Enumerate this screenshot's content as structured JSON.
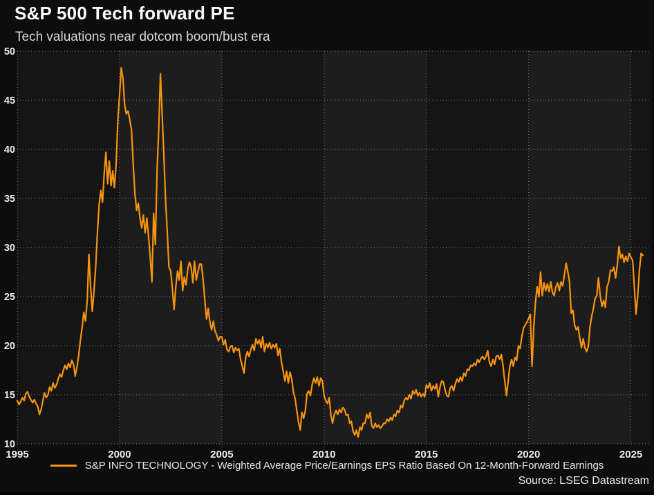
{
  "footer": {
    "source": "Source: LSEG Datastream"
  },
  "colors": {
    "background": "#0d0d0d",
    "line": "#F6940E",
    "band_dark": "#151515",
    "band_light": "#1d1d1d",
    "grid_dots": "#8f8f8f",
    "tick_text": "#ececec"
  },
  "chart_data": {
    "type": "line",
    "title": "S&P 500 Tech forward PE",
    "subtitle": "Tech valuations near dotcom boom/bust era",
    "xlabel": "",
    "ylabel": "",
    "grid": "dotted",
    "legend_position": "bottom",
    "plot_bands": "alternating 5-year vertical bands",
    "x_ticks": [
      1995,
      2000,
      2005,
      2010,
      2015,
      2020,
      2025
    ],
    "y_ticks": [
      10,
      15,
      20,
      25,
      30,
      35,
      40,
      45,
      50
    ],
    "xlim": [
      1995,
      2025.96
    ],
    "ylim": [
      10,
      50
    ],
    "x_start": 1995,
    "x_step": 0.083333,
    "series": [
      {
        "name": "S&P INFO TECHNOLOGY - Weighted Average Price/Earnings EPS Ratio Based On 12-Month-Forward Earnings",
        "color": "#F6940E",
        "values": [
          14.4,
          14.0,
          14.3,
          14.7,
          14.4,
          15.1,
          15.3,
          14.8,
          14.5,
          14.2,
          14.5,
          14.1,
          13.8,
          13.0,
          13.5,
          14.4,
          15.2,
          14.7,
          15.0,
          15.8,
          15.4,
          16.2,
          15.7,
          16.0,
          16.6,
          17.1,
          16.8,
          17.5,
          18.0,
          17.6,
          18.2,
          17.8,
          18.5,
          18.1,
          16.9,
          17.8,
          19.0,
          20.5,
          21.8,
          23.4,
          22.5,
          24.5,
          29.3,
          26.0,
          23.5,
          25.5,
          28.0,
          31.5,
          34.3,
          35.8,
          34.6,
          37.5,
          39.7,
          36.5,
          38.8,
          36.3,
          37.8,
          36.1,
          38.5,
          43.0,
          45.5,
          48.3,
          47.2,
          44.5,
          43.6,
          43.9,
          43.0,
          42.0,
          38.5,
          35.5,
          33.8,
          34.5,
          33.0,
          32.0,
          33.3,
          31.5,
          33.0,
          31.2,
          29.0,
          26.5,
          33.5,
          30.3,
          37.8,
          42.0,
          47.7,
          43.5,
          39.5,
          34.8,
          31.5,
          28.0,
          27.6,
          25.8,
          23.7,
          26.0,
          27.6,
          26.7,
          28.6,
          25.6,
          27.0,
          26.2,
          27.8,
          28.5,
          28.0,
          26.4,
          28.6,
          26.7,
          27.5,
          28.3,
          28.3,
          26.8,
          24.7,
          22.7,
          23.8,
          22.4,
          21.6,
          22.5,
          21.5,
          21.1,
          20.5,
          20.9,
          20.9,
          20.1,
          20.6,
          19.6,
          19.4,
          19.9,
          20.0,
          19.3,
          19.8,
          19.5,
          19.7,
          18.6,
          17.9,
          17.2,
          18.8,
          19.4,
          18.9,
          19.6,
          20.1,
          19.5,
          20.7,
          20.2,
          20.6,
          19.8,
          20.9,
          19.4,
          20.2,
          19.8,
          20.3,
          19.7,
          20.1,
          19.8,
          20.2,
          19.0,
          19.7,
          18.3,
          17.4,
          16.4,
          17.4,
          16.2,
          17.3,
          16.6,
          15.3,
          14.6,
          13.4,
          12.2,
          11.4,
          13.2,
          12.6,
          13.4,
          15.1,
          15.4,
          14.9,
          16.0,
          16.7,
          16.2,
          16.8,
          15.9,
          16.7,
          16.4,
          14.9,
          14.4,
          14.1,
          14.7,
          12.9,
          12.1,
          13.0,
          13.4,
          13.0,
          13.5,
          13.2,
          13.7,
          13.5,
          12.9,
          13.0,
          12.1,
          12.3,
          11.3,
          10.9,
          11.4,
          10.7,
          11.7,
          11.4,
          12.1,
          12.1,
          13.0,
          12.6,
          13.2,
          11.8,
          11.6,
          12.1,
          11.7,
          11.9,
          11.6,
          11.8,
          12.1,
          12.1,
          12.5,
          12.3,
          12.7,
          12.4,
          13.0,
          12.8,
          13.4,
          13.2,
          13.9,
          13.7,
          14.4,
          14.7,
          14.5,
          15.0,
          14.6,
          15.4,
          15.1,
          15.5,
          14.9,
          15.2,
          14.8,
          15.1,
          14.8,
          16.0,
          15.7,
          16.2,
          15.4,
          15.9,
          15.6,
          16.1,
          14.8,
          15.8,
          16.4,
          16.3,
          15.5,
          14.9,
          14.8,
          15.7,
          15.9,
          15.4,
          16.1,
          16.6,
          16.3,
          16.8,
          16.4,
          17.2,
          16.9,
          17.6,
          17.5,
          18.0,
          17.9,
          18.2,
          18.0,
          18.6,
          18.3,
          18.7,
          18.9,
          18.6,
          18.9,
          19.5,
          18.3,
          17.9,
          18.6,
          18.1,
          18.9,
          19.0,
          18.6,
          19.1,
          17.9,
          16.4,
          14.9,
          16.4,
          17.9,
          18.6,
          17.9,
          18.8,
          18.5,
          20.0,
          19.7,
          20.9,
          21.8,
          22.1,
          22.4,
          22.8,
          23.2,
          17.9,
          21.9,
          24.4,
          26.0,
          25.0,
          27.5,
          25.1,
          26.4,
          25.6,
          26.3,
          25.5,
          26.5,
          25.4,
          25.1,
          26.0,
          26.4,
          25.6,
          26.5,
          26.1,
          27.2,
          28.4,
          27.5,
          26.5,
          23.3,
          23.6,
          22.1,
          21.6,
          21.9,
          20.8,
          19.8,
          20.7,
          19.8,
          19.4,
          19.9,
          21.9,
          23.0,
          23.8,
          24.8,
          25.1,
          26.9,
          25.1,
          24.0,
          24.6,
          23.9,
          26.0,
          26.5,
          27.7,
          27.6,
          28.0,
          26.9,
          28.2,
          30.1,
          28.9,
          29.3,
          28.5,
          29.1,
          28.6,
          29.4,
          29.0,
          28.7,
          26.1,
          23.2,
          25.1,
          27.7,
          29.4,
          29.2
        ]
      }
    ]
  }
}
